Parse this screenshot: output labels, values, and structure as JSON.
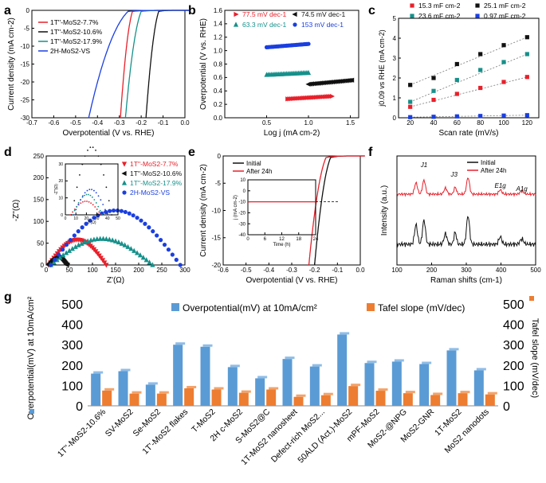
{
  "panel_labels": [
    "a",
    "b",
    "c",
    "d",
    "e",
    "f",
    "g"
  ],
  "colors": {
    "red": "#e8202a",
    "black": "#111111",
    "teal": "#16908a",
    "blue": "#1a3fe0",
    "bar_blue": "#5b9bd5",
    "bar_orange": "#ed7d31"
  },
  "chart_data": [
    {
      "id": "a",
      "type": "line",
      "xlabel": "Overpotential (V vs. RHE)",
      "ylabel": "Current density (mA cm-2)",
      "xlim": [
        -0.7,
        0.0
      ],
      "ylim": [
        -30,
        0
      ],
      "xticks": [
        "-0.7",
        "-0.6",
        "-0.5",
        "-0.4",
        "-0.3",
        "-0.2",
        "-0.1",
        "0.0"
      ],
      "yticks": [
        "-30",
        "-25",
        "-20",
        "-15",
        "-10",
        "-5",
        "0"
      ],
      "series": [
        {
          "name": "1T''-MoS2-7.7%",
          "color": "red",
          "onset": -0.24,
          "end": -0.295
        },
        {
          "name": "1T''-MoS2-10.6%",
          "color": "black",
          "onset": -0.12,
          "end": -0.178
        },
        {
          "name": "1T''-MoS2-17.9%",
          "color": "teal",
          "onset": -0.2,
          "end": -0.272
        },
        {
          "name": "2H-MoS2-VS",
          "color": "blue",
          "onset": -0.26,
          "end": -0.44
        }
      ]
    },
    {
      "id": "b",
      "type": "scatter",
      "xlabel": "Log j (mA cm-2)",
      "ylabel": "Overpotential (V vs. RHE)",
      "xlim": [
        0,
        1.6
      ],
      "ylim": [
        0,
        1.6
      ],
      "xticks": [
        "0.5",
        "1.0",
        "1.5"
      ],
      "yticks": [
        "0.0",
        "0.2",
        "0.4",
        "0.6",
        "0.8",
        "1.0",
        "1.2",
        "1.4",
        "1.6"
      ],
      "series": [
        {
          "name": "77.5 mV dec-1",
          "color": "red",
          "x": [
            0.75,
            1.28
          ],
          "y": [
            0.28,
            0.32
          ]
        },
        {
          "name": "74.5 mV dec-1",
          "color": "black",
          "x": [
            1.0,
            1.52
          ],
          "y": [
            0.5,
            0.56
          ]
        },
        {
          "name": "63.3 mV dec-1",
          "color": "teal",
          "x": [
            0.5,
            1.0
          ],
          "y": [
            0.64,
            0.67
          ]
        },
        {
          "name": "153 mV dec-1",
          "color": "blue",
          "x": [
            0.5,
            1.0
          ],
          "y": [
            1.05,
            1.1
          ]
        }
      ]
    },
    {
      "id": "c",
      "type": "scatter",
      "xlabel": "Scan rate (mV/s)",
      "ylabel": "j0.09 vs RHE (mA cm-2)",
      "xlim": [
        10,
        130
      ],
      "ylim": [
        0,
        5
      ],
      "xticks": [
        "20",
        "40",
        "60",
        "80",
        "100",
        "120"
      ],
      "yticks": [
        "0",
        "1",
        "2",
        "3",
        "4",
        "5"
      ],
      "x": [
        20,
        40,
        60,
        80,
        100,
        120
      ],
      "series": [
        {
          "name": "15.3 mF cm-2",
          "color": "red",
          "values": [
            0.55,
            0.9,
            1.2,
            1.5,
            1.8,
            2.05
          ]
        },
        {
          "name": "25.1 mF cm-2",
          "color": "black",
          "values": [
            1.65,
            2.0,
            2.7,
            3.2,
            3.65,
            4.05
          ]
        },
        {
          "name": "23.6 mF cm-2",
          "color": "teal",
          "values": [
            0.8,
            1.35,
            1.9,
            2.4,
            2.8,
            3.2
          ]
        },
        {
          "name": "0.97 mF cm-2",
          "color": "blue",
          "values": [
            0.03,
            0.05,
            0.07,
            0.09,
            0.11,
            0.13
          ]
        }
      ]
    },
    {
      "id": "d",
      "type": "scatter",
      "xlabel": "Z'(Ω)",
      "ylabel": "-Z''(Ω)",
      "xlim": [
        0,
        300
      ],
      "ylim": [
        0,
        250
      ],
      "xticks": [
        "0",
        "50",
        "100",
        "150",
        "200",
        "250",
        "300"
      ],
      "yticks": [
        "0",
        "50",
        "100",
        "150",
        "200",
        "250"
      ],
      "series": [
        {
          "name": "1T''-MoS2-7.7%",
          "color": "red",
          "start": 5,
          "end": 130,
          "peak": 58
        },
        {
          "name": "1T''-MoS2-10.6%",
          "color": "black",
          "start": 5,
          "end": 45,
          "peak": 18
        },
        {
          "name": "1T''-MoS2-17.9%",
          "color": "teal",
          "start": 10,
          "end": 230,
          "peak": 60
        },
        {
          "name": "2H-MoS2-VS",
          "color": "blue",
          "start": 10,
          "end": 290,
          "peak": 125
        }
      ],
      "inset": {
        "xlabel": "Z'(Ω)",
        "ylabel": "-Z''(Ω)",
        "xticks": [
          "0",
          "10",
          "20",
          "30",
          "40",
          "50"
        ],
        "yticks": [
          "0",
          "10",
          "20",
          "30"
        ]
      }
    },
    {
      "id": "e",
      "type": "line",
      "xlabel": "Overpotential (V vs. RHE)",
      "ylabel": "Current density (mA cm-2)",
      "xlim": [
        -0.6,
        0.0
      ],
      "ylim": [
        -20,
        0
      ],
      "xticks": [
        "-0.6",
        "-0.5",
        "-0.4",
        "-0.3",
        "-0.2",
        "-0.1",
        "0.0"
      ],
      "yticks": [
        "-20",
        "-15",
        "-10",
        "-5",
        "0"
      ],
      "series": [
        {
          "name": "Initial",
          "color": "black",
          "onset": -0.13,
          "end": -0.2
        },
        {
          "name": "After 24h",
          "color": "red",
          "onset": -0.15,
          "end": -0.225
        }
      ],
      "inset": {
        "xlabel": "Time (h)",
        "ylabel": "j (mA cm-2)",
        "xticks": [
          "0",
          "6",
          "12",
          "18",
          "24"
        ],
        "yticks": [
          "10",
          "0",
          "-10",
          "-20",
          "-30",
          "-40"
        ],
        "level": -10
      }
    },
    {
      "id": "f",
      "type": "line",
      "xlabel": "Raman shifts (cm-1)",
      "ylabel": "Intensity (a.u.)",
      "xlim": [
        100,
        500
      ],
      "xticks": [
        "100",
        "200",
        "300",
        "400",
        "500"
      ],
      "series": [
        {
          "name": "Initial",
          "color": "black"
        },
        {
          "name": "After 24h",
          "color": "red"
        }
      ],
      "annotations": [
        "J1",
        "J3",
        "E1g",
        "A1g"
      ]
    },
    {
      "id": "g",
      "type": "bar",
      "ylabel": "Overpotential(mV) at 10mA/cm²",
      "ylabel_right": "Tafel slope (mV/dec)",
      "ylim": [
        0,
        500
      ],
      "yticks": [
        "0",
        "100",
        "200",
        "300",
        "400",
        "500"
      ],
      "categories": [
        "1T''-MoS2-10.6%",
        "SV-MoS2",
        "Se-MoS2",
        "1T'-MoS2 flakes",
        "T-MoS2",
        "2H c-MoS2",
        "S-MoS2@C",
        "1T-MoS2 nanosheet",
        "Defect-rich MoS2...",
        "50ALD (Act.)-MoS2",
        "mPF-MoS2",
        "MoS2-@NPG",
        "MoS2-GNR",
        "1T-MoS2",
        "MoS2 nanodots"
      ],
      "series": [
        {
          "name": "Overpotential(mV) at 10mA/cm²",
          "color": "bar_blue",
          "values": [
            158,
            170,
            104,
            300,
            290,
            190,
            135,
            230,
            193,
            350,
            210,
            217,
            205,
            272,
            174
          ]
        },
        {
          "name": "Tafel slope (mV/dec)",
          "color": "bar_orange",
          "values": [
            75,
            60,
            60,
            86,
            80,
            64,
            80,
            44,
            52,
            97,
            74,
            62,
            53,
            62,
            56
          ]
        }
      ]
    }
  ]
}
